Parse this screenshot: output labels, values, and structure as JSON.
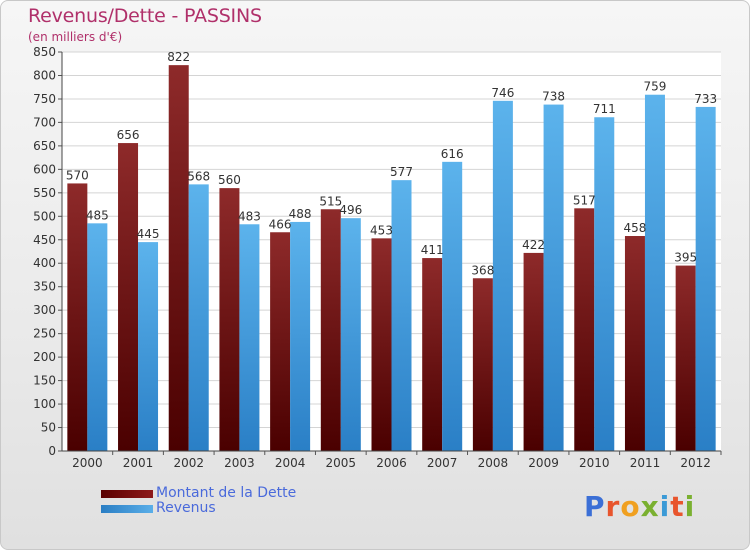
{
  "header": {
    "title": "Revenus/Dette - PASSINS",
    "subtitle": "(en milliers d'€)"
  },
  "legend": {
    "debt_label": "Montant de la Dette",
    "revenue_label": "Revenus"
  },
  "branding": {
    "logo_text": "Proxiti",
    "logo_letters": [
      "P",
      "r",
      "o",
      "x",
      "i",
      "t",
      "i"
    ],
    "logo_colors": [
      "#3b6fd6",
      "#e8552d",
      "#f0a020",
      "#7ab030",
      "#3b9ad6",
      "#e8552d",
      "#7ab030"
    ]
  },
  "colors": {
    "debt": "#7a1010",
    "revenue": "#4aa3e2",
    "title": "#b0306a"
  },
  "chart_data": {
    "type": "bar",
    "title": "Revenus/Dette - PASSINS",
    "ylabel": "(en milliers d'€)",
    "xlabel": "",
    "categories": [
      "2000",
      "2001",
      "2002",
      "2003",
      "2004",
      "2005",
      "2006",
      "2007",
      "2008",
      "2009",
      "2010",
      "2011",
      "2012"
    ],
    "series": [
      {
        "name": "Montant de la Dette",
        "values": [
          570,
          656,
          822,
          560,
          466,
          515,
          453,
          411,
          368,
          422,
          517,
          458,
          395
        ]
      },
      {
        "name": "Revenus",
        "values": [
          485,
          445,
          568,
          483,
          488,
          496,
          577,
          616,
          746,
          738,
          711,
          759,
          733
        ]
      }
    ],
    "ylim": [
      0,
      850
    ],
    "ytick_step": 50,
    "grid": true,
    "legend_position": "bottom-left"
  }
}
